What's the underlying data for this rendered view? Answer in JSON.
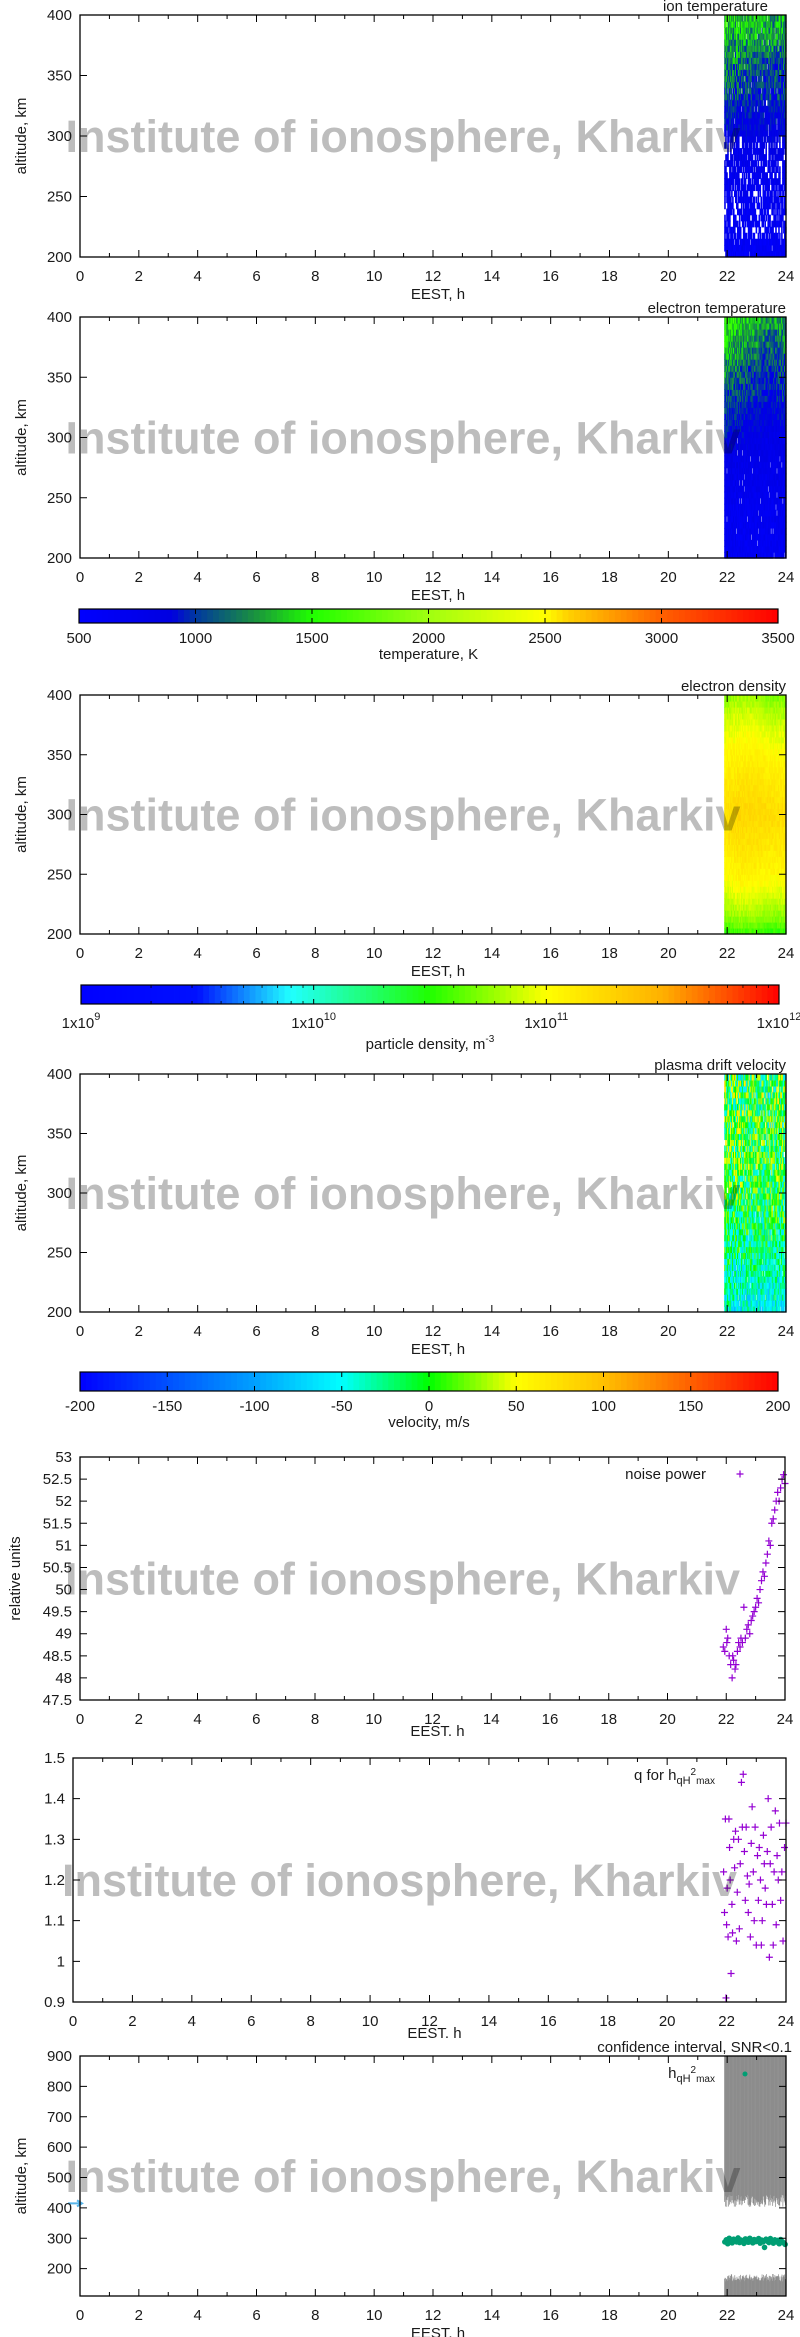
{
  "watermark": "Institute of ionosphere, Kharkiv",
  "colorbars": [
    {
      "label": "temperature, K",
      "scale": "linear",
      "range": [
        500,
        3500
      ],
      "ticks": [
        500,
        1000,
        1500,
        2000,
        2500,
        3000,
        3500
      ],
      "stops": [
        [
          500,
          "#0000ff"
        ],
        [
          900,
          "#0000e0"
        ],
        [
          1000,
          "#0038a0"
        ],
        [
          1250,
          "#1a9040"
        ],
        [
          1500,
          "#20ff00"
        ],
        [
          2000,
          "#a0ff10"
        ],
        [
          2500,
          "#ffff00"
        ],
        [
          2600,
          "#ffd000"
        ],
        [
          3000,
          "#ff6000"
        ],
        [
          3500,
          "#ff0000"
        ]
      ]
    },
    {
      "label": "particle density, m",
      "label_sup": "-3",
      "scale": "log",
      "range": [
        1000000000.0,
        1000000000000.0
      ],
      "ticks": [
        {
          "base": "1x10",
          "exp": "9",
          "value": 1000000000.0
        },
        {
          "base": "1x10",
          "exp": "10",
          "value": 10000000000.0
        },
        {
          "base": "1x10",
          "exp": "11",
          "value": 100000000000.0
        },
        {
          "base": "1x10",
          "exp": "12",
          "value": 1000000000000.0
        }
      ],
      "stops": [
        [
          9,
          "#0000ff"
        ],
        [
          9.5,
          "#0010ff"
        ],
        [
          9.9,
          "#20ffff"
        ],
        [
          10.5,
          "#20ff00"
        ],
        [
          11,
          "#ffff00"
        ],
        [
          11.5,
          "#ffb000"
        ],
        [
          12,
          "#ff0000"
        ]
      ]
    },
    {
      "label": "velocity, m/s",
      "scale": "linear",
      "range": [
        -200,
        200
      ],
      "ticks": [
        -200,
        -150,
        -100,
        -50,
        0,
        50,
        100,
        150,
        200
      ],
      "stops": [
        [
          -200,
          "#0000ff"
        ],
        [
          -100,
          "#00a0ff"
        ],
        [
          -50,
          "#00ffff"
        ],
        [
          0,
          "#00ff00"
        ],
        [
          50,
          "#ffff00"
        ],
        [
          100,
          "#ffc000"
        ],
        [
          200,
          "#ff0000"
        ]
      ]
    }
  ],
  "chart_data": [
    {
      "type": "heatmap",
      "title": "ion temperature",
      "xlabel": "EEST, h",
      "ylabel": "altitude, km",
      "xlim": [
        0,
        24
      ],
      "ylim": [
        200,
        400
      ],
      "xticks": [
        0,
        2,
        4,
        6,
        8,
        10,
        12,
        14,
        16,
        18,
        20,
        22,
        24
      ],
      "yticks": [
        200,
        250,
        300,
        350,
        400
      ],
      "colorbar": 0,
      "data_time_range": [
        21.9,
        24
      ],
      "grid": {
        "times": [
          21.9,
          22.4,
          22.9,
          23.4,
          24
        ],
        "altitudes": [
          200,
          250,
          300,
          350,
          400
        ],
        "values": [
          [
            620,
            600,
            610,
            600,
            620
          ],
          [
            700,
            680,
            650,
            700,
            680
          ],
          [
            850,
            820,
            800,
            830,
            800
          ],
          [
            1150,
            1100,
            1050,
            1000,
            1050
          ],
          [
            1500,
            1400,
            1450,
            1300,
            1350
          ]
        ]
      }
    },
    {
      "type": "heatmap",
      "title": "electron temperature",
      "xlabel": "EEST, h",
      "ylabel": "altitude, km",
      "xlim": [
        0,
        24
      ],
      "ylim": [
        200,
        400
      ],
      "xticks": [
        0,
        2,
        4,
        6,
        8,
        10,
        12,
        14,
        16,
        18,
        20,
        22,
        24
      ],
      "yticks": [
        200,
        250,
        300,
        350,
        400
      ],
      "colorbar": 0,
      "data_time_range": [
        21.9,
        24
      ],
      "grid": {
        "times": [
          21.9,
          22.4,
          22.9,
          23.4,
          24
        ],
        "altitudes": [
          200,
          250,
          300,
          350,
          400
        ],
        "values": [
          [
            650,
            650,
            640,
            650,
            660
          ],
          [
            720,
            700,
            700,
            690,
            700
          ],
          [
            900,
            850,
            820,
            800,
            820
          ],
          [
            1200,
            1100,
            1000,
            950,
            1000
          ],
          [
            1550,
            1450,
            1400,
            1250,
            1300
          ]
        ]
      }
    },
    {
      "type": "heatmap",
      "title": "electron density",
      "xlabel": "EEST, h",
      "ylabel": "altitude, km",
      "xlim": [
        0,
        24
      ],
      "ylim": [
        200,
        400
      ],
      "xticks": [
        0,
        2,
        4,
        6,
        8,
        10,
        12,
        14,
        16,
        18,
        20,
        22,
        24
      ],
      "yticks": [
        200,
        250,
        300,
        350,
        400
      ],
      "colorbar": 1,
      "data_time_range": [
        21.9,
        24
      ],
      "grid": {
        "times": [
          21.9,
          22.4,
          22.9,
          23.4,
          24
        ],
        "altitudes": [
          200,
          250,
          300,
          350,
          400
        ],
        "values": [
          [
            30000000000.0,
            35000000000.0,
            35000000000.0,
            30000000000.0,
            30000000000.0
          ],
          [
            100000000000.0,
            120000000000.0,
            120000000000.0,
            110000000000.0,
            110000000000.0
          ],
          [
            160000000000.0,
            180000000000.0,
            180000000000.0,
            170000000000.0,
            160000000000.0
          ],
          [
            110000000000.0,
            120000000000.0,
            120000000000.0,
            110000000000.0,
            100000000000.0
          ],
          [
            50000000000.0,
            60000000000.0,
            60000000000.0,
            50000000000.0,
            50000000000.0
          ]
        ]
      }
    },
    {
      "type": "heatmap",
      "title": "plasma drift velocity",
      "xlabel": "EEST, h",
      "ylabel": "altitude, km",
      "xlim": [
        0,
        24
      ],
      "ylim": [
        200,
        400
      ],
      "xticks": [
        0,
        2,
        4,
        6,
        8,
        10,
        12,
        14,
        16,
        18,
        20,
        22,
        24
      ],
      "yticks": [
        200,
        250,
        300,
        350,
        400
      ],
      "colorbar": 2,
      "data_time_range": [
        21.9,
        24
      ],
      "grid": {
        "times": [
          21.9,
          22.4,
          22.9,
          23.4,
          24
        ],
        "altitudes": [
          200,
          250,
          300,
          350,
          400
        ],
        "values": [
          [
            -40,
            -60,
            -50,
            -60,
            -50
          ],
          [
            -20,
            -30,
            -20,
            -30,
            -20
          ],
          [
            -10,
            -5,
            -10,
            -5,
            -10
          ],
          [
            0,
            5,
            0,
            -5,
            0
          ],
          [
            10,
            0,
            5,
            -10,
            0
          ]
        ]
      }
    },
    {
      "type": "scatter",
      "legend": "noise power",
      "legend_position": "top-right",
      "xlabel": "EEST. h",
      "ylabel": "relative units",
      "xlim": [
        0,
        24
      ],
      "ylim": [
        47.5,
        53
      ],
      "xticks": [
        0,
        2,
        4,
        6,
        8,
        10,
        12,
        14,
        16,
        18,
        20,
        22,
        24
      ],
      "yticks": [
        "47.5",
        "48",
        "48.5",
        "49",
        "49.5",
        "50",
        "50.5",
        "51",
        "51.5",
        "52",
        "52.5",
        "53"
      ],
      "marker": "+",
      "color": "#9400d3",
      "points": [
        [
          21.9,
          48.7
        ],
        [
          21.95,
          48.6
        ],
        [
          22.0,
          49.1
        ],
        [
          22.02,
          48.8
        ],
        [
          22.05,
          48.9
        ],
        [
          22.1,
          48.5
        ],
        [
          22.15,
          48.3
        ],
        [
          22.2,
          48.0
        ],
        [
          22.22,
          48.5
        ],
        [
          22.25,
          48.4
        ],
        [
          22.3,
          48.2
        ],
        [
          22.33,
          48.3
        ],
        [
          22.38,
          48.6
        ],
        [
          22.42,
          48.8
        ],
        [
          22.47,
          48.7
        ],
        [
          22.5,
          48.9
        ],
        [
          22.55,
          48.8
        ],
        [
          22.6,
          49.6
        ],
        [
          22.65,
          48.9
        ],
        [
          22.7,
          49.1
        ],
        [
          22.75,
          49.2
        ],
        [
          22.8,
          49.0
        ],
        [
          22.85,
          49.3
        ],
        [
          22.9,
          49.4
        ],
        [
          22.95,
          49.5
        ],
        [
          23.0,
          49.6
        ],
        [
          23.05,
          49.8
        ],
        [
          23.1,
          49.7
        ],
        [
          23.15,
          50.0
        ],
        [
          23.2,
          50.2
        ],
        [
          23.25,
          50.4
        ],
        [
          23.3,
          50.3
        ],
        [
          23.35,
          50.6
        ],
        [
          23.4,
          50.8
        ],
        [
          23.45,
          51.1
        ],
        [
          23.5,
          51.0
        ],
        [
          23.55,
          51.5
        ],
        [
          23.6,
          51.6
        ],
        [
          23.65,
          51.8
        ],
        [
          23.7,
          52.0
        ],
        [
          23.75,
          52.2
        ],
        [
          23.8,
          52.0
        ],
        [
          23.85,
          52.3
        ],
        [
          23.9,
          52.5
        ],
        [
          23.95,
          52.6
        ],
        [
          24.0,
          52.4
        ]
      ]
    },
    {
      "type": "scatter",
      "legend": {
        "text": "q for h",
        "sub": "qH",
        "sup": "2",
        "sub2": "max"
      },
      "legend_position": "top-right",
      "xlabel": "EEST. h",
      "ylabel": "",
      "xlim": [
        0,
        24
      ],
      "ylim": [
        0.9,
        1.5
      ],
      "xticks": [
        0,
        2,
        4,
        6,
        8,
        10,
        12,
        14,
        16,
        18,
        20,
        22,
        24
      ],
      "yticks": [
        "0.9",
        "1",
        "1.1",
        "1.2",
        "1.3",
        "1.4",
        "1.5"
      ],
      "marker": "+",
      "color": "#9400d3",
      "points": [
        [
          21.9,
          1.22
        ],
        [
          21.93,
          1.12
        ],
        [
          21.96,
          1.35
        ],
        [
          22.0,
          1.09
        ],
        [
          22.02,
          1.18
        ],
        [
          22.05,
          1.06
        ],
        [
          22.08,
          1.35
        ],
        [
          22.1,
          1.28
        ],
        [
          22.12,
          1.2
        ],
        [
          22.15,
          0.97
        ],
        [
          22.18,
          1.14
        ],
        [
          22.2,
          1.07
        ],
        [
          22.24,
          1.3
        ],
        [
          22.27,
          1.23
        ],
        [
          22.3,
          1.32
        ],
        [
          22.33,
          1.05
        ],
        [
          22.36,
          1.17
        ],
        [
          22.4,
          1.3
        ],
        [
          22.43,
          1.08
        ],
        [
          22.46,
          1.24
        ],
        [
          22.5,
          1.44
        ],
        [
          22.53,
          1.33
        ],
        [
          22.56,
          1.46
        ],
        [
          22.6,
          1.27
        ],
        [
          22.63,
          1.15
        ],
        [
          22.66,
          1.33
        ],
        [
          22.7,
          1.21
        ],
        [
          22.73,
          1.12
        ],
        [
          22.76,
          1.19
        ],
        [
          22.8,
          1.06
        ],
        [
          22.83,
          1.29
        ],
        [
          22.86,
          1.38
        ],
        [
          22.9,
          1.22
        ],
        [
          22.93,
          1.1
        ],
        [
          22.96,
          1.33
        ],
        [
          23.0,
          1.04
        ],
        [
          23.04,
          1.26
        ],
        [
          23.07,
          1.15
        ],
        [
          23.1,
          1.28
        ],
        [
          23.14,
          1.2
        ],
        [
          23.17,
          1.04
        ],
        [
          23.2,
          1.1
        ],
        [
          23.24,
          1.31
        ],
        [
          23.27,
          1.24
        ],
        [
          23.3,
          1.18
        ],
        [
          23.34,
          1.14
        ],
        [
          23.37,
          1.27
        ],
        [
          23.4,
          1.4
        ],
        [
          23.44,
          1.01
        ],
        [
          23.47,
          1.24
        ],
        [
          23.5,
          1.33
        ],
        [
          23.54,
          1.14
        ],
        [
          23.57,
          1.04
        ],
        [
          23.6,
          1.22
        ],
        [
          23.64,
          1.37
        ],
        [
          23.67,
          1.09
        ],
        [
          23.7,
          1.26
        ],
        [
          23.74,
          1.2
        ],
        [
          23.78,
          1.34
        ],
        [
          23.82,
          1.15
        ],
        [
          23.86,
          1.22
        ],
        [
          23.9,
          1.05
        ],
        [
          23.95,
          1.28
        ],
        [
          24.0,
          1.34
        ],
        [
          21.98,
          0.91
        ]
      ]
    },
    {
      "type": "scatter",
      "title": "confidence interval, SNR<0.1",
      "legend": {
        "text": "h",
        "sub": "qH",
        "sup": "2",
        "sub2": "max"
      },
      "legend_position": "top-right",
      "xlabel": "EEST, h",
      "ylabel": "altitude, km",
      "xlim": [
        0,
        24
      ],
      "ylim": [
        110,
        900
      ],
      "xticks": [
        0,
        2,
        4,
        6,
        8,
        10,
        12,
        14,
        16,
        18,
        20,
        22,
        24
      ],
      "yticks": [
        200,
        300,
        400,
        500,
        600,
        700,
        800,
        900
      ],
      "marker": "dot",
      "color": "#009e73",
      "band_color": "#8c8c8c",
      "start_marker": {
        "x": 0,
        "y": 415,
        "color": "#56b4e9"
      },
      "confidence_interval": {
        "time_range": [
          21.9,
          24
        ],
        "upper_band_km": [
          415,
          900
        ],
        "lower_band_km": [
          110,
          170
        ]
      },
      "points": [
        [
          21.92,
          288
        ],
        [
          21.97,
          295
        ],
        [
          22.02,
          282
        ],
        [
          22.07,
          300
        ],
        [
          22.12,
          290
        ],
        [
          22.17,
          285
        ],
        [
          22.22,
          297
        ],
        [
          22.27,
          292
        ],
        [
          22.32,
          288
        ],
        [
          22.37,
          301
        ],
        [
          22.42,
          286
        ],
        [
          22.47,
          294
        ],
        [
          22.52,
          290
        ],
        [
          22.57,
          283
        ],
        [
          22.62,
          298
        ],
        [
          22.67,
          291
        ],
        [
          22.72,
          287
        ],
        [
          22.77,
          300
        ],
        [
          22.82,
          293
        ],
        [
          22.87,
          285
        ],
        [
          22.92,
          296
        ],
        [
          22.97,
          289
        ],
        [
          23.02,
          292
        ],
        [
          23.07,
          299
        ],
        [
          23.12,
          284
        ],
        [
          23.17,
          294
        ],
        [
          23.22,
          288
        ],
        [
          23.27,
          270
        ],
        [
          23.32,
          297
        ],
        [
          23.37,
          290
        ],
        [
          23.42,
          286
        ],
        [
          23.47,
          299
        ],
        [
          23.52,
          291
        ],
        [
          23.57,
          284
        ],
        [
          23.62,
          295
        ],
        [
          23.67,
          288
        ],
        [
          23.72,
          293
        ],
        [
          23.77,
          282
        ],
        [
          23.82,
          296
        ],
        [
          23.87,
          289
        ],
        [
          23.92,
          285
        ],
        [
          23.97,
          280
        ]
      ]
    }
  ]
}
